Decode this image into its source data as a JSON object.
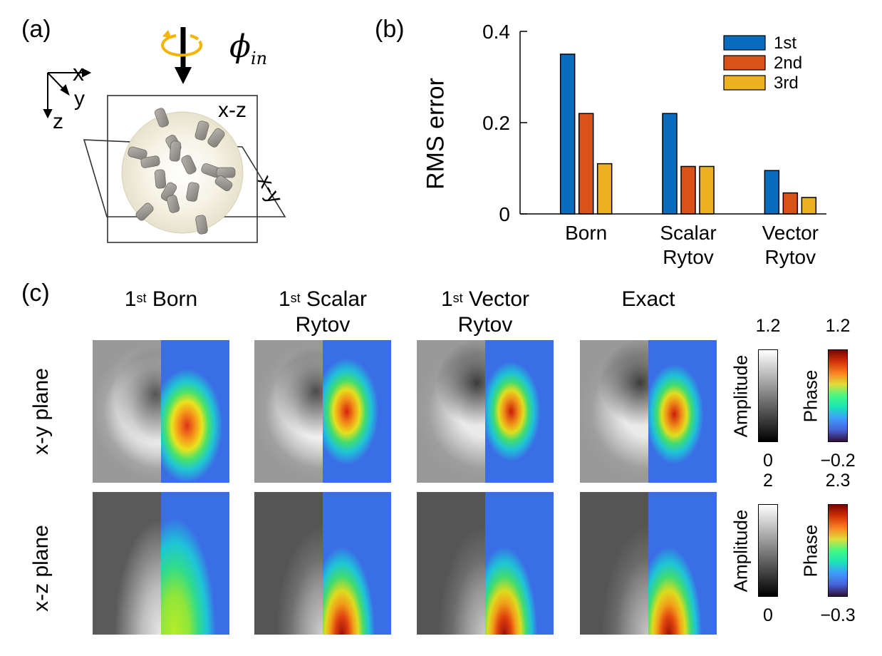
{
  "panel_a": {
    "label": "(a)",
    "axis_x": "x",
    "axis_y": "y",
    "axis_z": "z",
    "plane_xz": "x-z",
    "plane_xy": "x-y",
    "phi_symbol": "ϕ",
    "phi_subscript": "in",
    "colors": {
      "rotation_arrow": "#f5b400",
      "sphere": "#f1ecd9",
      "cylinder": "#9a9890"
    }
  },
  "panel_b": {
    "label": "(b)",
    "category_lines": [
      [
        "Born"
      ],
      [
        "Scalar",
        "Rytov"
      ],
      [
        "Vector",
        "Rytov"
      ]
    ],
    "y_ticks": [
      "0",
      "0.2",
      "0.4"
    ]
  },
  "chart_data": {
    "type": "bar",
    "categories": [
      "Born",
      "Scalar Rytov",
      "Vector Rytov"
    ],
    "series": [
      {
        "name": "1st",
        "values": [
          0.35,
          0.22,
          0.095
        ],
        "color": "#0a6cbd"
      },
      {
        "name": "2nd",
        "values": [
          0.22,
          0.104,
          0.046
        ],
        "color": "#d95319"
      },
      {
        "name": "3rd",
        "values": [
          0.11,
          0.104,
          0.036
        ],
        "color": "#edb120"
      }
    ],
    "ylabel": "RMS error",
    "ylim": [
      0,
      0.4
    ],
    "legend_position": "top-right",
    "grid": false
  },
  "panel_c": {
    "label": "(c)",
    "columns": [
      {
        "sup": "st",
        "lines": [
          "1",
          " Born"
        ],
        "line2": ""
      },
      {
        "sup": "st",
        "lines": [
          "1",
          " Scalar"
        ],
        "line2": "Rytov"
      },
      {
        "sup": "st",
        "lines": [
          "1",
          " Vector"
        ],
        "line2": "Rytov"
      },
      {
        "sup": "",
        "lines": [
          "Exact",
          ""
        ],
        "line2": ""
      }
    ],
    "rows": [
      "x-y plane",
      "x-z plane"
    ],
    "colorbars": {
      "xy": {
        "amp_label": "Amplitude",
        "amp_max": "1.2",
        "amp_min": "0",
        "phase_label": "Phase",
        "phase_max": "1.2",
        "phase_min": "−0.2"
      },
      "xz": {
        "amp_label": "Amplitude",
        "amp_max": "2",
        "amp_min": "0",
        "phase_label": "Phase",
        "phase_max": "2.3",
        "phase_min": "−0.3"
      }
    }
  }
}
